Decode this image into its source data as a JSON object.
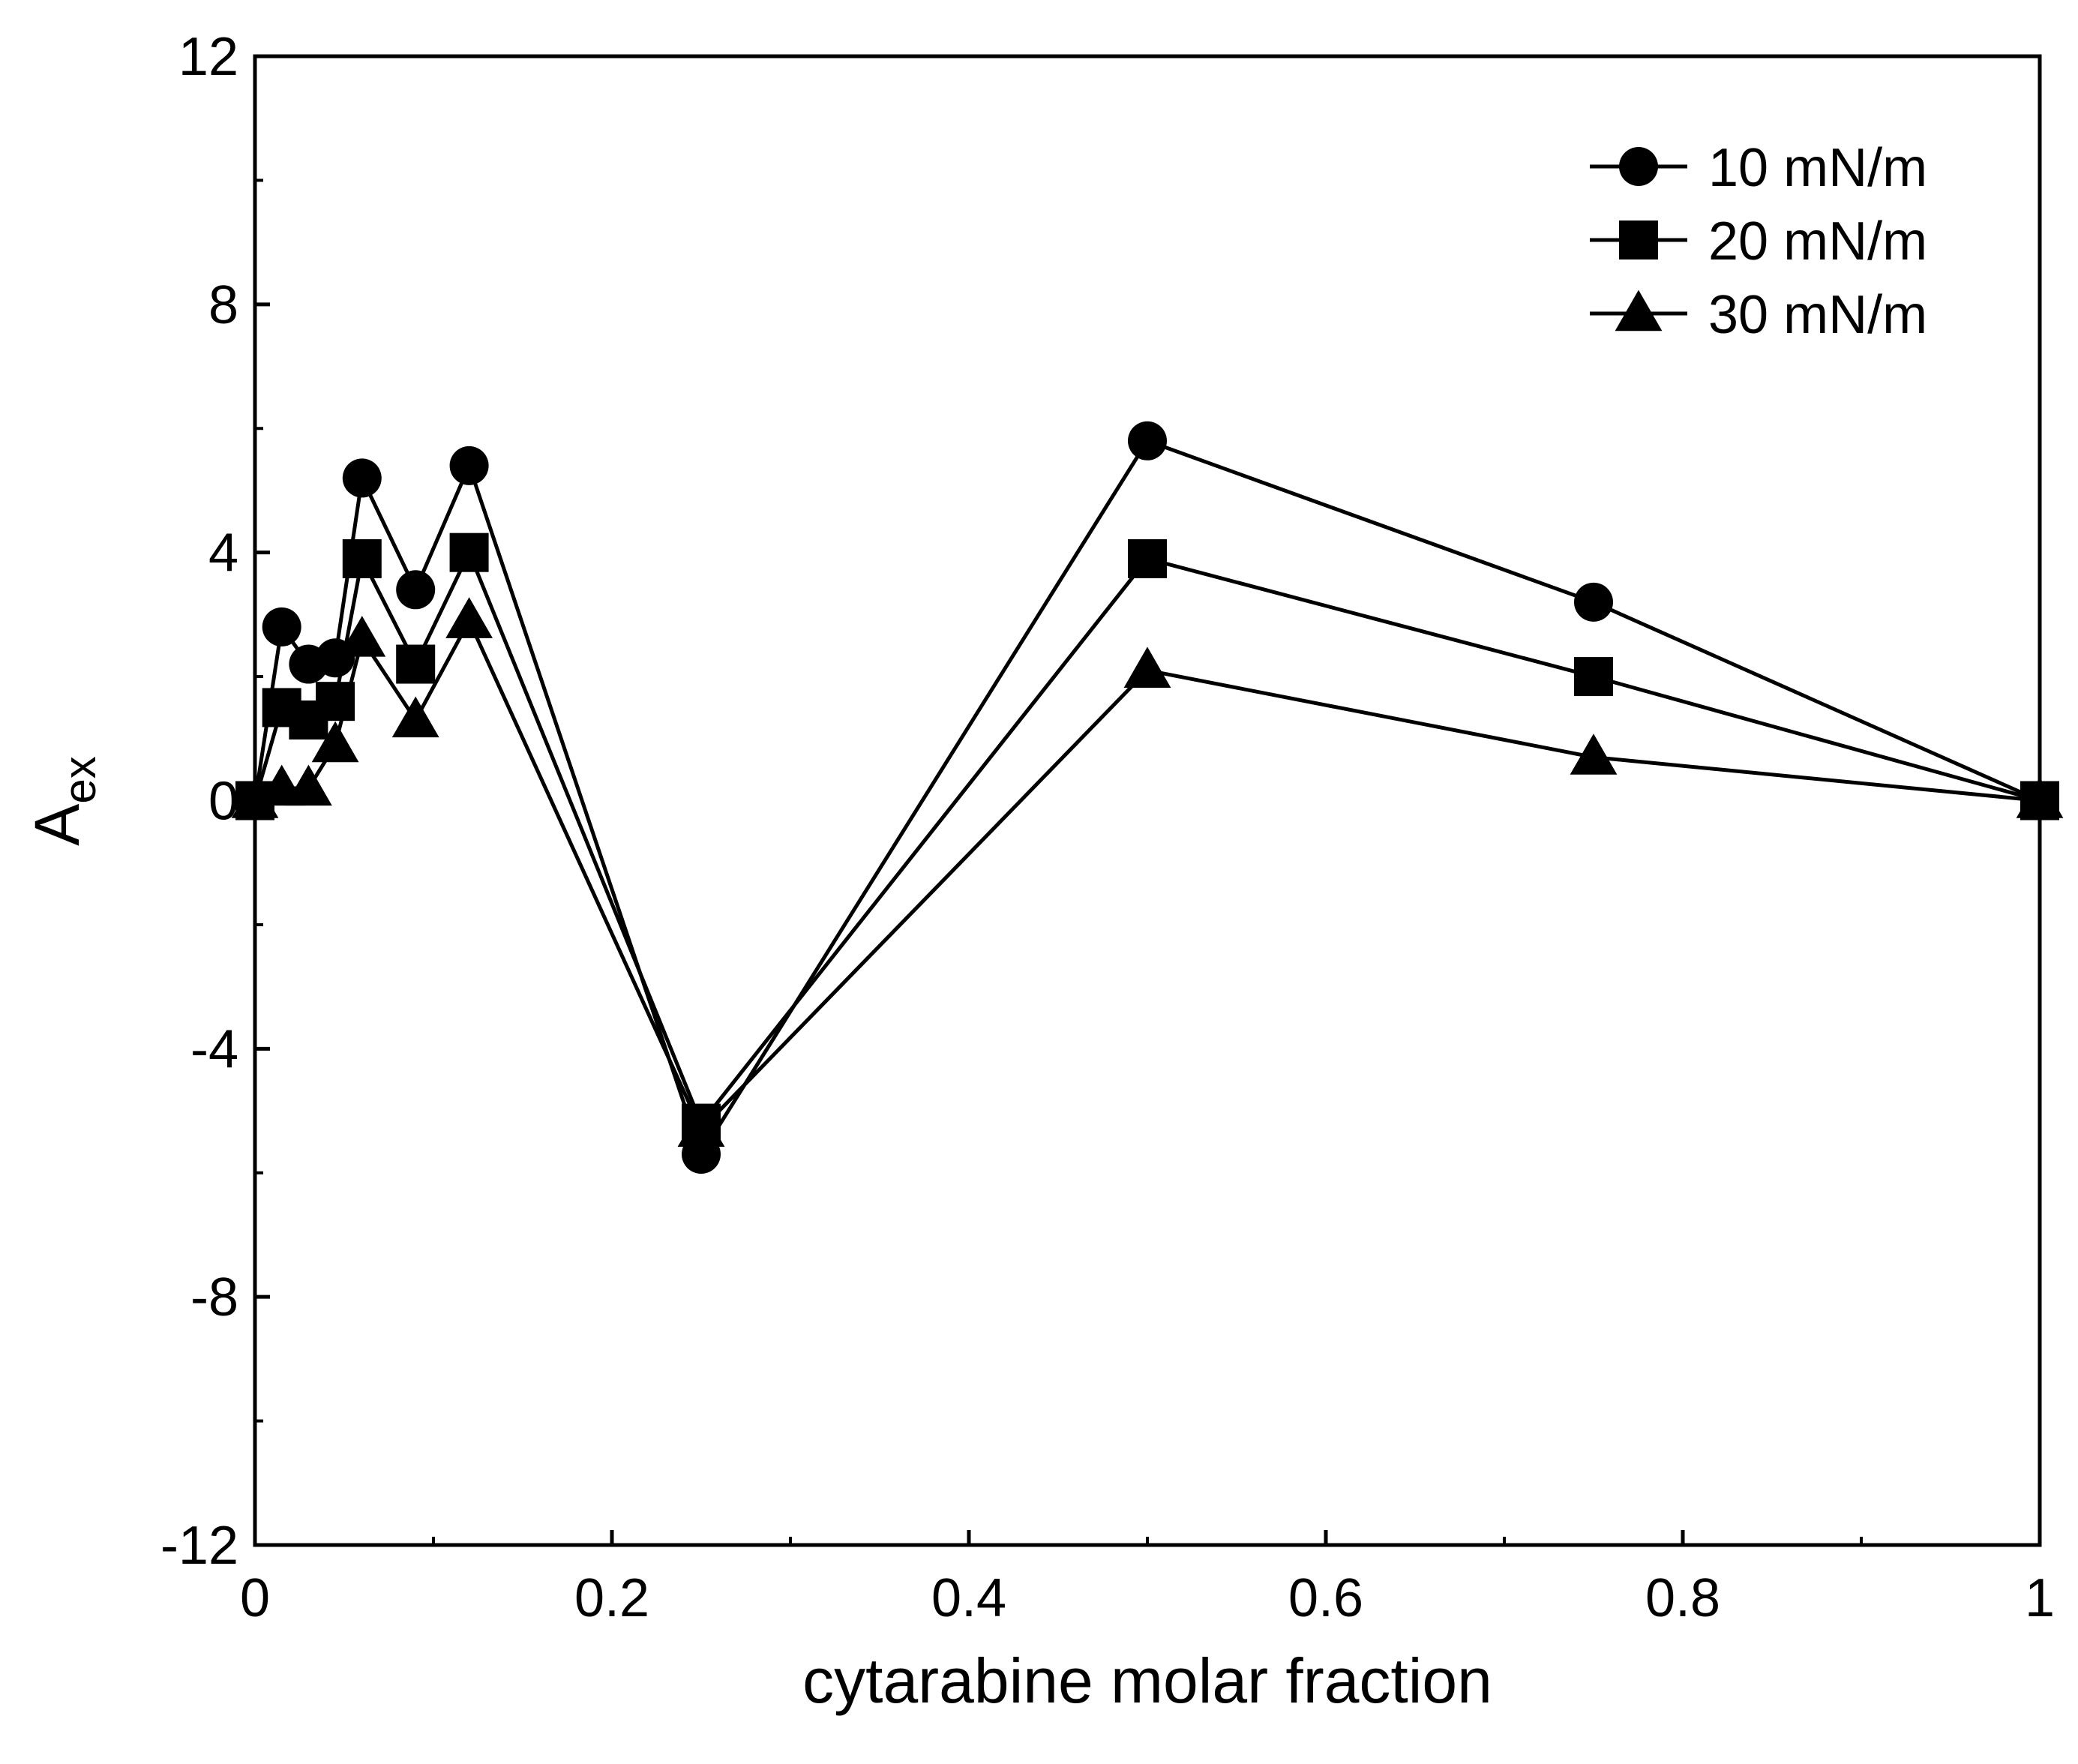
{
  "chart_data": {
    "type": "line",
    "title": "",
    "xlabel": "cytarabine molar fraction",
    "ylabel_main": "A",
    "ylabel_sub": "ex",
    "xlim": [
      0,
      1
    ],
    "ylim": [
      -12,
      12
    ],
    "x_ticks": [
      0,
      0.2,
      0.4,
      0.6,
      0.8,
      1
    ],
    "x_tick_labels": [
      "0",
      "0.2",
      "0.4",
      "0.6",
      "0.8",
      "1"
    ],
    "y_ticks": [
      -12,
      -8,
      -4,
      0,
      4,
      8,
      12
    ],
    "y_tick_labels": [
      "-12",
      "-8",
      "-4",
      "0",
      "4",
      "8",
      "12"
    ],
    "grid": false,
    "legend_position": "top-right",
    "x": [
      0,
      0.015,
      0.03,
      0.045,
      0.06,
      0.09,
      0.12,
      0.25,
      0.5,
      0.75,
      1
    ],
    "series": [
      {
        "name": "10 mN/m",
        "marker": "circle",
        "values": [
          0,
          2.8,
          2.2,
          2.3,
          5.2,
          3.4,
          5.4,
          -5.7,
          5.8,
          3.2,
          0
        ]
      },
      {
        "name": "20 mN/m",
        "marker": "square",
        "values": [
          0,
          1.5,
          1.3,
          1.6,
          3.9,
          2.2,
          4.0,
          -5.2,
          3.9,
          2.0,
          0
        ]
      },
      {
        "name": "30 mN/m",
        "marker": "triangle",
        "values": [
          0,
          0.2,
          0.2,
          0.9,
          2.6,
          1.3,
          2.9,
          -5.3,
          2.1,
          0.7,
          0
        ]
      }
    ],
    "colors": {
      "line": "#000000",
      "marker": "#000000"
    }
  }
}
